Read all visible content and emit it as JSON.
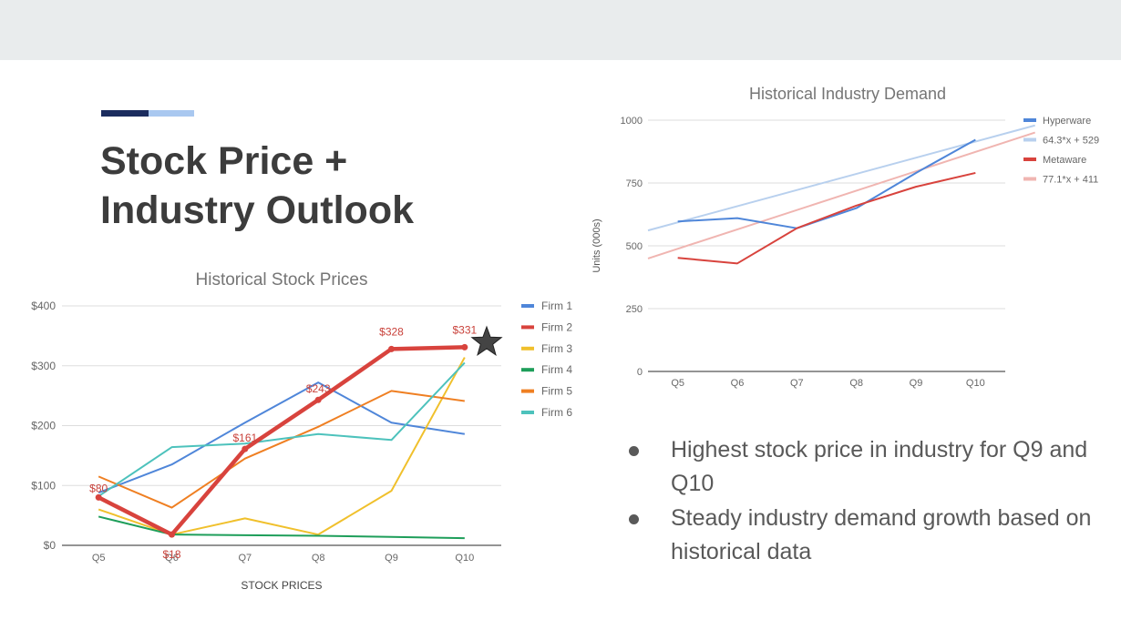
{
  "slide": {
    "title_line1": "Stock Price +",
    "title_line2": "Industry Outlook",
    "bullets": [
      "Highest stock price in industry for Q9 and Q10",
      "Steady industry demand growth based on historical data"
    ]
  },
  "colors": {
    "topbar": "#e9eced",
    "accent_dark": "#1b2c5e",
    "accent_light": "#a9c8f0",
    "title": "#3c3c3c"
  },
  "chart_data": [
    {
      "type": "line",
      "title": "Historical Stock Prices",
      "xlabel": "STOCK PRICES",
      "ylabel": "",
      "categories": [
        "Q5",
        "Q6",
        "Q7",
        "Q8",
        "Q9",
        "Q10"
      ],
      "ylim": [
        0,
        400
      ],
      "yticks": [
        0,
        100,
        200,
        300,
        400
      ],
      "ytick_labels": [
        "$0",
        "$100",
        "$200",
        "$300",
        "$400"
      ],
      "grid": true,
      "legend_position": "right",
      "series": [
        {
          "name": "Firm 1",
          "color": "#4f86d9",
          "values": [
            88,
            135,
            205,
            272,
            205,
            186
          ]
        },
        {
          "name": "Firm 3",
          "color": "#f0c02c",
          "values": [
            60,
            18,
            45,
            18,
            91,
            314
          ]
        },
        {
          "name": "Firm 4",
          "color": "#1e9e5a",
          "values": [
            48,
            18,
            17,
            16,
            14,
            12
          ]
        },
        {
          "name": "Firm 5",
          "color": "#ef7f22",
          "values": [
            115,
            63,
            145,
            198,
            258,
            241
          ]
        },
        {
          "name": "Firm 6",
          "color": "#4dc2bc",
          "values": [
            82,
            164,
            170,
            186,
            176,
            305
          ]
        },
        {
          "name": "Firm 2",
          "color": "#d8433d",
          "values": [
            80,
            18,
            161,
            243,
            328,
            331
          ],
          "highlight": true
        }
      ],
      "data_labels": [
        "$80",
        "$18",
        "$161",
        "$243",
        "$328",
        "$331"
      ],
      "annotation_icon": "star-icon"
    },
    {
      "type": "line",
      "title": "Historical Industry Demand",
      "xlabel": "",
      "ylabel": "Units (000s)",
      "categories": [
        "Q5",
        "Q6",
        "Q7",
        "Q8",
        "Q9",
        "Q10"
      ],
      "ylim": [
        0,
        1000
      ],
      "yticks": [
        0,
        250,
        500,
        750,
        1000
      ],
      "grid": true,
      "legend_position": "right",
      "series": [
        {
          "name": "Hyperware",
          "color": "#4f86d9",
          "values": [
            597,
            610,
            570,
            650,
            790,
            922
          ]
        },
        {
          "name": "Metaware",
          "color": "#d8433d",
          "values": [
            452,
            430,
            570,
            660,
            735,
            790
          ]
        }
      ],
      "trendlines": [
        {
          "name": "64.3*x + 529",
          "color": "#b8d0ee",
          "slope": 64.3,
          "intercept": 529
        },
        {
          "name": "77.1*x + 411",
          "color": "#f0b5b1",
          "slope": 77.1,
          "intercept": 411
        }
      ]
    }
  ]
}
